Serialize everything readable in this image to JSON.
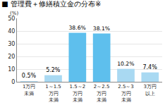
{
  "chart_data": {
    "type": "bar",
    "title": "■ 管理費＋修繕積立金の分布※",
    "y_label": "(%)",
    "categories": [
      "1万円\n未満",
      "1～1.5\n万円\n未満",
      "1.5～2\n万円\n未満",
      "2～2.5\n万円\n未満",
      "2.5～3\n万円\n未満",
      "3万円\n以上"
    ],
    "values": [
      0.5,
      5.2,
      38.6,
      38.1,
      10.2,
      7.4
    ],
    "value_labels": [
      "0.5%",
      "5.2%",
      "38.6%",
      "38.1%",
      "10.2%",
      "7.4%"
    ],
    "colors": [
      "#a9d9f2",
      "#a9d9f2",
      "#5ebfed",
      "#5ebfed",
      "#a9d9f2",
      "#a9d9f2"
    ],
    "ylim": [
      0,
      50
    ],
    "yticks": [
      0,
      10,
      20,
      30,
      40,
      50
    ],
    "grid": true,
    "data_labels": true
  }
}
